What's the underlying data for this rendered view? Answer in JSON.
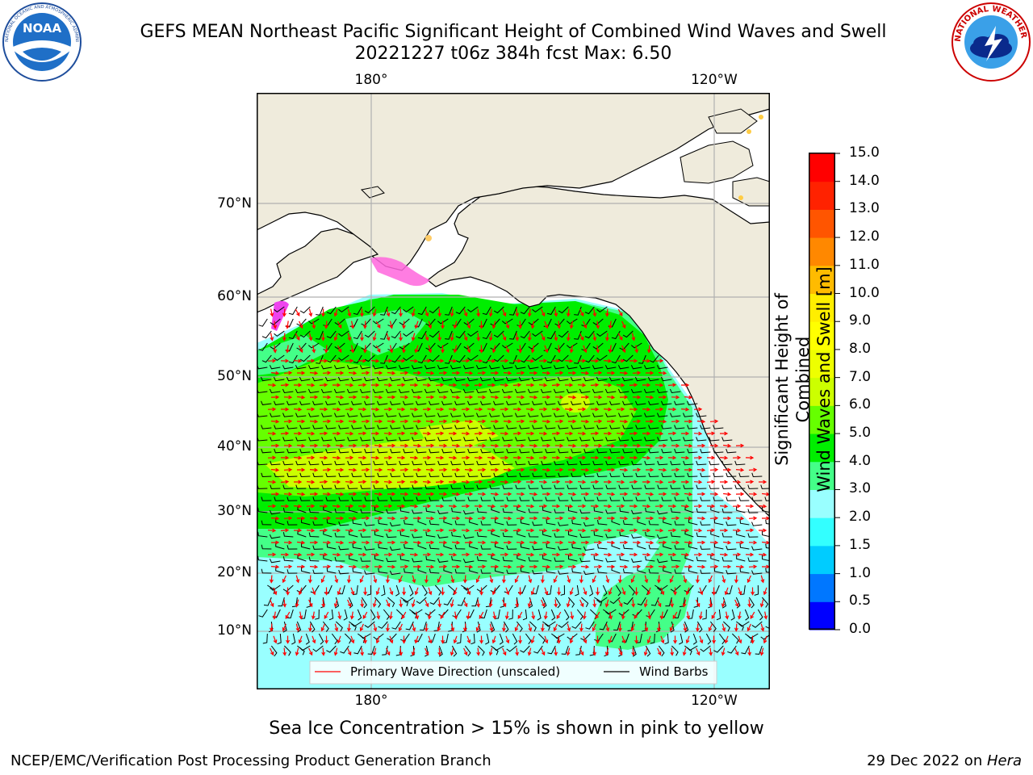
{
  "title": {
    "line1": "GEFS MEAN Northeast Pacific Significant Height of Combined Wind Waves and Swell",
    "line2": "20221227 t06z 384h fcst   Max: 6.50"
  },
  "logos": {
    "left": {
      "icon": "noaa-logo",
      "text": "NOAA"
    },
    "right": {
      "icon": "nws-logo",
      "text": "NATIONAL WEATHER SERVICE"
    }
  },
  "map": {
    "lon_labels_top": [
      "180°",
      "120°W"
    ],
    "lon_labels_bottom": [
      "180°",
      "120°W"
    ],
    "lat_labels": [
      "70°N",
      "60°N",
      "50°N",
      "40°N",
      "30°N",
      "20°N",
      "10°N"
    ],
    "legend": {
      "primary_wave": "Primary Wave Direction (unscaled)",
      "wind_barbs": "Wind Barbs"
    },
    "colors": {
      "land": "#efebdc",
      "wave_arrow": "#ff0000",
      "barb": "#000000",
      "grid": "#b0b0b0"
    }
  },
  "colorbar": {
    "title_line1": "Significant Height of Combined",
    "title_line2": "Wind Waves and Swell [m]",
    "tick_labels": [
      "0.0",
      "0.5",
      "1.0",
      "1.5",
      "2.0",
      "3.0",
      "4.0",
      "5.0",
      "6.0",
      "7.0",
      "8.0",
      "9.0",
      "10.0",
      "11.0",
      "12.0",
      "13.0",
      "14.0",
      "15.0"
    ],
    "colors": [
      "#0000ff",
      "#0077ff",
      "#00ccff",
      "#33ffff",
      "#99ffff",
      "#44ff88",
      "#00ee00",
      "#66ff00",
      "#ccff00",
      "#eeff00",
      "#ffff00",
      "#ffee00",
      "#ffbb00",
      "#ff8800",
      "#ff5500",
      "#ff2200",
      "#ff0000"
    ]
  },
  "note": "Sea Ice Concentration > 15% is shown in pink to yellow",
  "footer": {
    "left": "NCEP/EMC/Verification Post Processing Product Generation Branch",
    "right_date": "29 Dec 2022 on ",
    "right_host": "Hera"
  }
}
